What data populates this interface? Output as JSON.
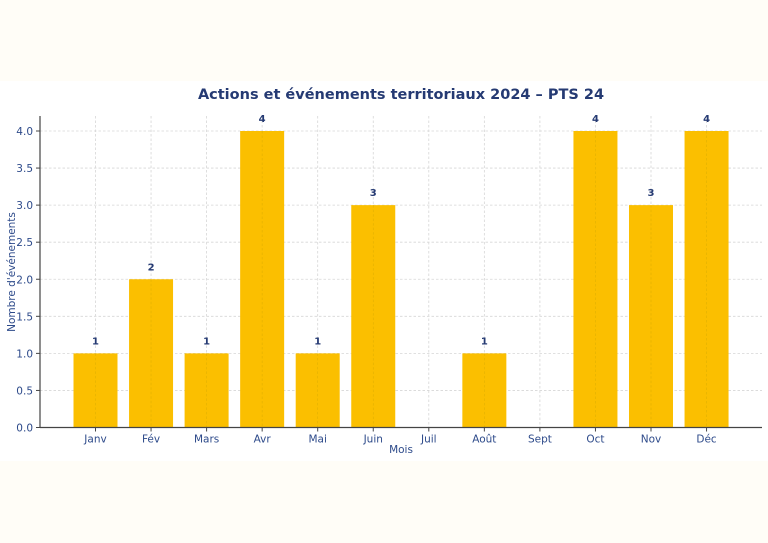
{
  "chart_data": {
    "type": "bar",
    "title": "Actions et événements territoriaux 2024 – PTS 24",
    "xlabel": "Mois",
    "ylabel": "Nombre d'événements",
    "categories": [
      "Janv",
      "Fév",
      "Mars",
      "Avr",
      "Mai",
      "Juin",
      "Juil",
      "Août",
      "Sept",
      "Oct",
      "Nov",
      "Déc"
    ],
    "values": [
      1,
      2,
      1,
      4,
      1,
      3,
      0,
      1,
      0,
      4,
      3,
      4
    ],
    "data_labels": [
      "1",
      "2",
      "1",
      "4",
      "1",
      "3",
      "",
      "1",
      "",
      "4",
      "3",
      "4"
    ],
    "ylim": [
      0,
      4.2
    ],
    "yticks": [
      0.0,
      0.5,
      1.0,
      1.5,
      2.0,
      2.5,
      3.0,
      3.5,
      4.0
    ],
    "ytick_labels": [
      "0.0",
      "0.5",
      "1.0",
      "1.5",
      "2.0",
      "2.5",
      "3.0",
      "3.5",
      "4.0"
    ],
    "grid": true,
    "legend": "none",
    "colors": {
      "bar": "#fbbf00",
      "text": "#253a73",
      "background": "#fffdf7"
    }
  }
}
